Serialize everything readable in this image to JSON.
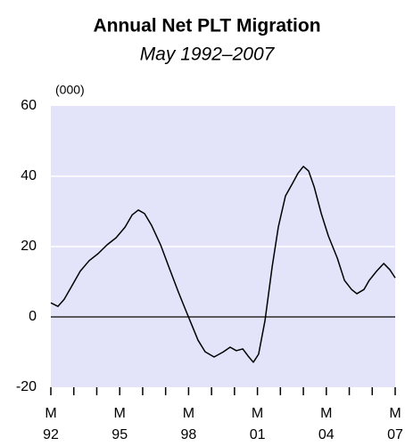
{
  "chart_data": {
    "type": "line",
    "title": "Annual Net PLT Migration",
    "subtitle": "May 1992–2007",
    "y_axis_label": "(000)",
    "x": [
      1992.33,
      1992.64,
      1992.91,
      1993.22,
      1993.61,
      1994.0,
      1994.39,
      1994.78,
      1995.17,
      1995.56,
      1995.87,
      1996.14,
      1996.41,
      1996.72,
      1997.11,
      1997.5,
      1997.89,
      1998.2,
      1998.47,
      1998.74,
      1999.05,
      1999.44,
      1999.83,
      2000.14,
      2000.41,
      2000.69,
      2000.92,
      2001.15,
      2001.38,
      2001.66,
      2001.97,
      2002.24,
      2002.55,
      2002.86,
      2003.09,
      2003.33,
      2003.56,
      2003.8,
      2004.11,
      2004.42,
      2004.81,
      2005.12,
      2005.43,
      2005.66,
      2005.97,
      2006.2,
      2006.52,
      2006.83,
      2007.1,
      2007.33
    ],
    "series": [
      {
        "color": "#000000",
        "values": [
          4,
          3,
          5,
          8.5,
          13,
          16,
          18,
          20.5,
          22.5,
          25.5,
          29,
          30.4,
          29.4,
          26,
          20.5,
          13.7,
          7,
          2,
          -2.3,
          -6.6,
          -9.9,
          -11.4,
          -10,
          -8.6,
          -9.6,
          -9.1,
          -11.1,
          -12.9,
          -10.6,
          -1,
          14.2,
          25.6,
          34.4,
          38,
          40.8,
          42.8,
          41.5,
          37,
          29.4,
          23,
          16.7,
          10.4,
          7.8,
          6.6,
          7.8,
          10.4,
          13,
          15.2,
          13.4,
          11.1
        ]
      }
    ],
    "xlim": [
      1992.33,
      2007.33
    ],
    "xticks": [
      {
        "value": 1992.33,
        "label": "M 92"
      },
      {
        "value": 1995.33,
        "label": "M 95"
      },
      {
        "value": 1998.33,
        "label": "M 98"
      },
      {
        "value": 2001.33,
        "label": "M 01"
      },
      {
        "value": 2004.33,
        "label": "M 04"
      },
      {
        "value": 2007.33,
        "label": "M 07"
      }
    ],
    "x_minor_ticks": [
      1993.33,
      1994.33,
      1996.33,
      1997.33,
      1999.33,
      2000.33,
      2002.33,
      2003.33,
      2005.33,
      2006.33
    ],
    "ylim": [
      -20,
      60
    ],
    "yticks": [
      -20,
      0,
      20,
      40,
      60
    ],
    "grid": true,
    "grid_color": "#ffffff",
    "background_color": "#e3e3fa",
    "zero_line": true
  }
}
